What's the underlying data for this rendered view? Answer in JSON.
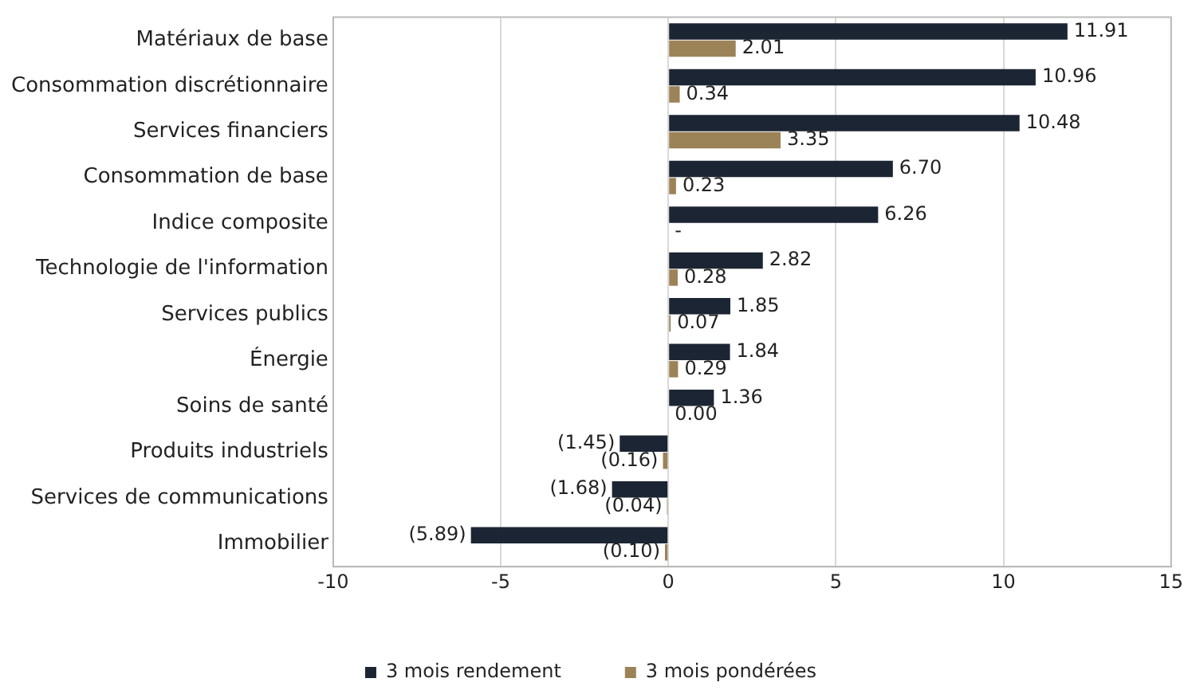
{
  "chart_data": {
    "type": "bar",
    "orientation": "horizontal",
    "categories": [
      "Matériaux de base",
      "Consommation discrétionnaire",
      "Services financiers",
      "Consommation de base",
      "Indice composite",
      "Technologie de l'information",
      "Services publics",
      "Énergie",
      "Soins de santé",
      "Produits industriels",
      "Services de communications",
      "Immobilier"
    ],
    "series": [
      {
        "name": "3 mois rendement",
        "color": "#1c2533",
        "values": [
          11.91,
          10.96,
          10.48,
          6.7,
          6.26,
          2.82,
          1.85,
          1.84,
          1.36,
          -1.45,
          -1.68,
          -5.89
        ],
        "value_labels": [
          "11.91",
          "10.96",
          "10.48",
          "6.70",
          "6.26",
          "2.82",
          "1.85",
          "1.84",
          "1.36",
          "(1.45)",
          "(1.68)",
          "(5.89)"
        ]
      },
      {
        "name": "3 mois pondérées",
        "color": "#9c8257",
        "values": [
          2.01,
          0.34,
          3.35,
          0.23,
          null,
          0.28,
          0.07,
          0.29,
          0.0,
          -0.16,
          -0.04,
          -0.1
        ],
        "value_labels": [
          "2.01",
          "0.34",
          "3.35",
          "0.23",
          "-",
          "0.28",
          "0.07",
          "0.29",
          "0.00",
          "(0.16)",
          "(0.04)",
          "(0.10)"
        ]
      }
    ],
    "xlim": [
      -10,
      15
    ],
    "xticks": [
      -10,
      -5,
      0,
      5,
      10,
      15
    ],
    "grid": "x",
    "legend": "bottom"
  }
}
